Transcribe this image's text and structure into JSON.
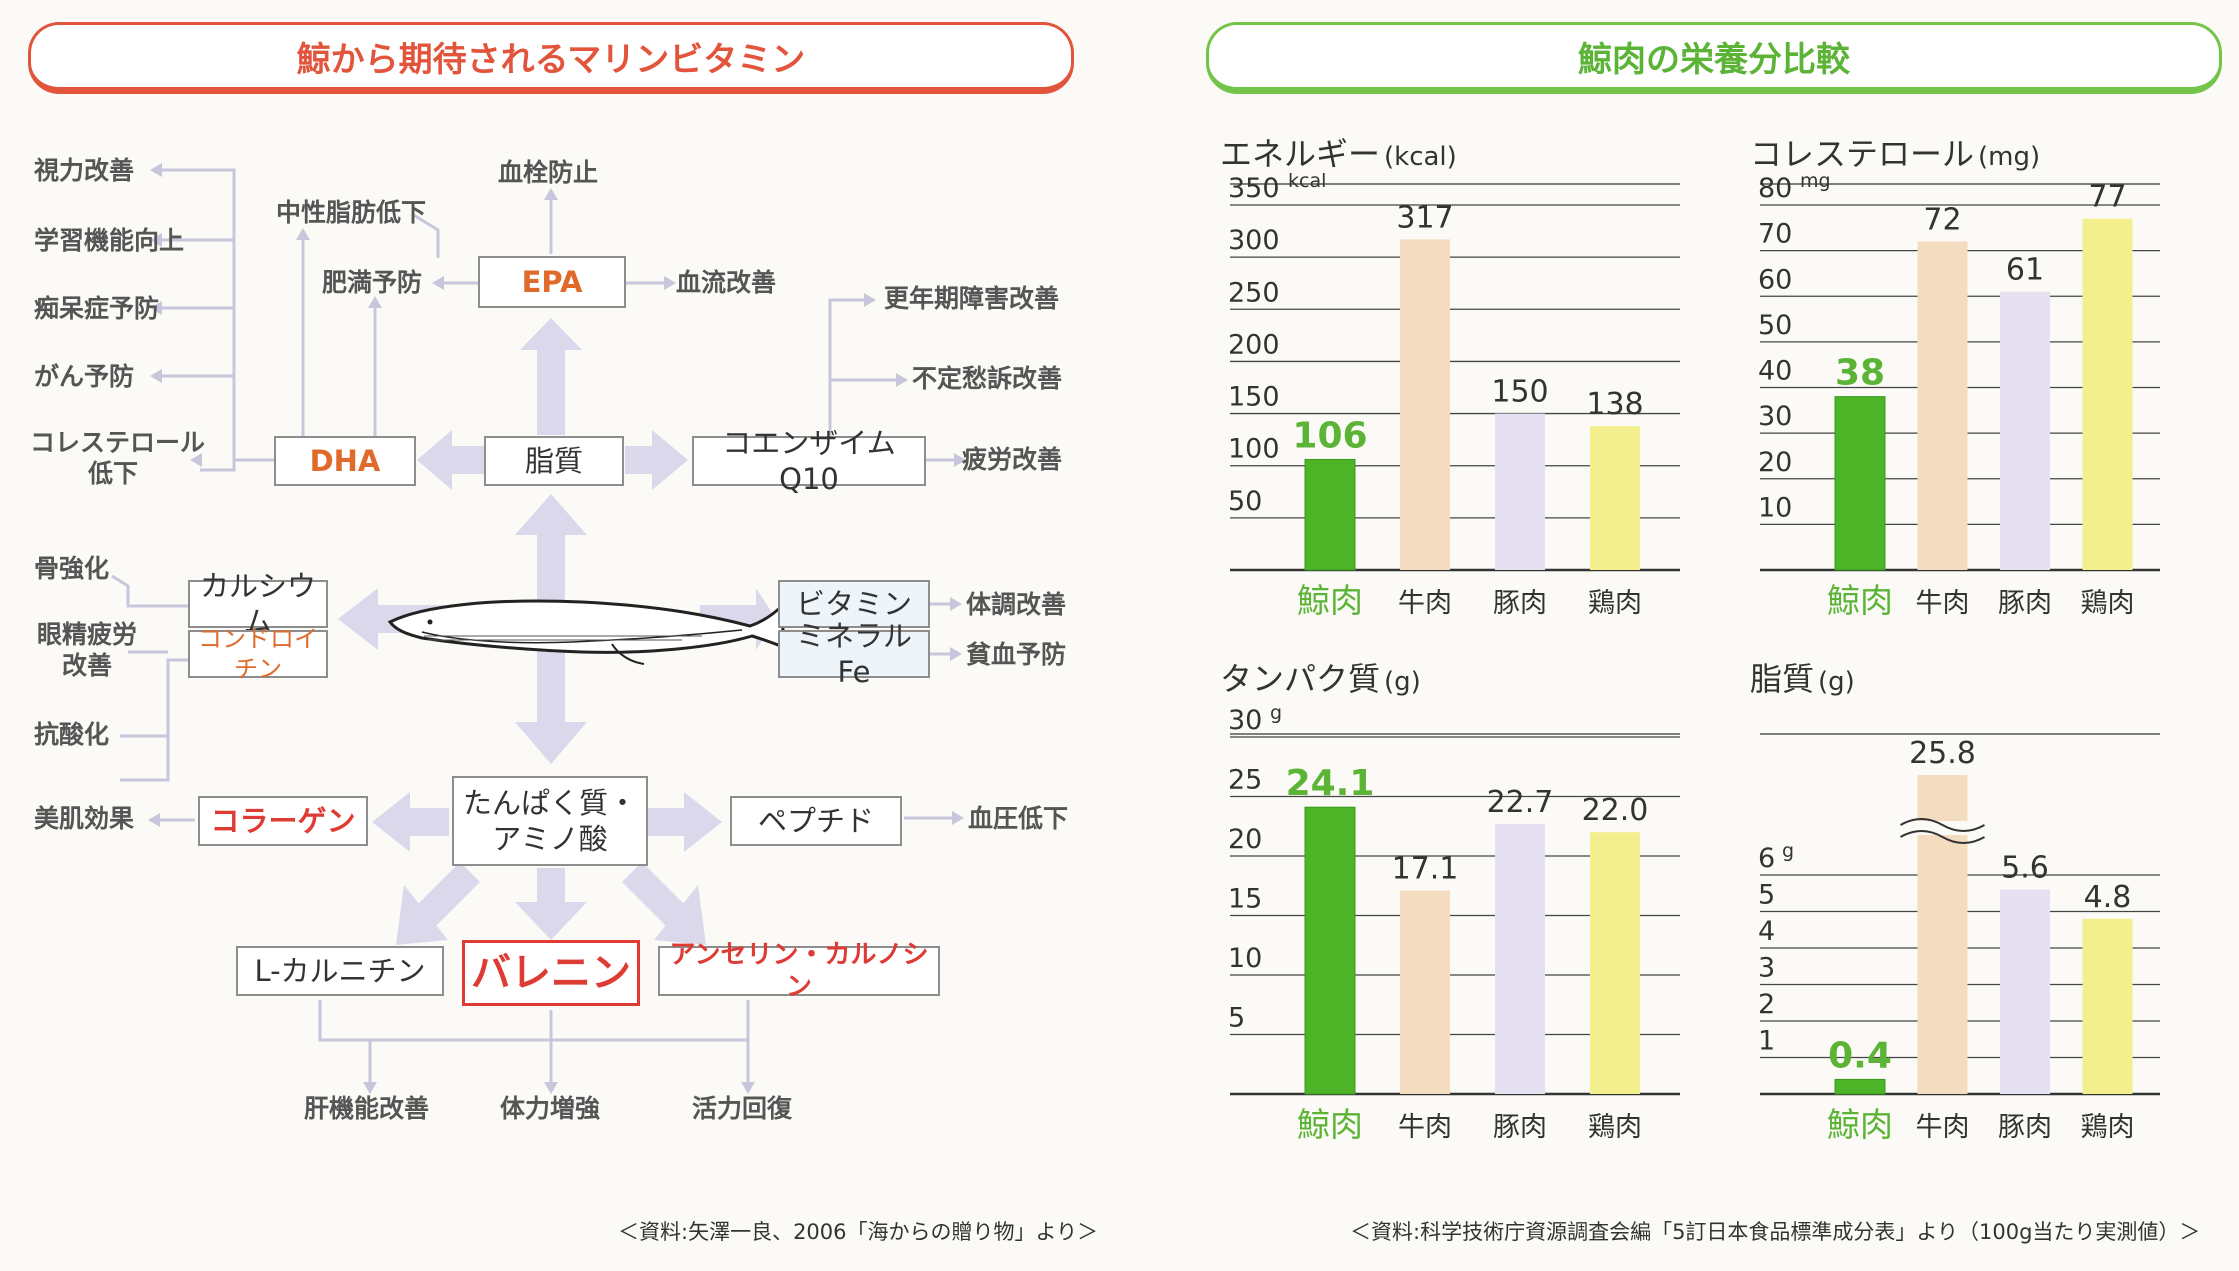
{
  "left": {
    "title": "鯨から期待されるマリンビタミン",
    "boxes": {
      "epa": "EPA",
      "dha": "DHA",
      "lipid": "脂質",
      "coq10": "コエンザイムQ10",
      "calcium": "カルシウム",
      "chondroitin": "コンドロイチン",
      "vitamin": "ビタミン",
      "mineral": "ミネラルFe",
      "protein_line1": "たんぱく質・",
      "protein_line2": "アミノ酸",
      "collagen": "コラーゲン",
      "peptide": "ペプチド",
      "carnitine": "L-カルニチン",
      "balenine": "バレニン",
      "anserine": "アンセリン・カルノシン"
    },
    "effects": {
      "vision": "視力改善",
      "learning": "学習機能向上",
      "dementia": "痴呆症予防",
      "cancer": "がん予防",
      "chol_line1": "コレステロール",
      "chol_line2": "低下",
      "thrombus": "血栓防止",
      "neutral_fat": "中性脂肪低下",
      "obesity": "肥満予防",
      "blood_flow": "血流改善",
      "menopause": "更年期障害改善",
      "malaise": "不定愁訴改善",
      "fatigue": "疲労改善",
      "bone": "骨強化",
      "eye_line1": "眼精疲労",
      "eye_line2": "改善",
      "antiox": "抗酸化",
      "skin": "美肌効果",
      "condition": "体調改善",
      "anemia": "貧血予防",
      "bp": "血圧低下",
      "liver": "肝機能改善",
      "stamina": "体力増強",
      "recovery": "活力回復"
    },
    "source": "＜資料:矢澤一良、2006「海からの贈り物」より＞"
  },
  "right": {
    "title": "鯨肉の栄養分比較",
    "source": "＜資料:科学技術庁資源調査会編「5訂日本食品標準成分表」より（100g当たり実測値）＞"
  },
  "colors": {
    "red": "#e2553c",
    "green": "#5cb437",
    "whale_bar": "#4db427",
    "beef_bar": "#f4dcc0",
    "pork_bar": "#e6e1f1",
    "chicken_bar": "#f3ef8e",
    "arrow": "#dcd8ec"
  },
  "chart_data": [
    {
      "type": "bar",
      "title": "エネルギー",
      "unit_label": "(kcal)",
      "unit_tick": "kcal",
      "categories": [
        "鯨肉",
        "牛肉",
        "豚肉",
        "鶏肉"
      ],
      "values": [
        106,
        317,
        150,
        138
      ],
      "value_labels": [
        "106",
        "317",
        "150",
        "138"
      ],
      "yticks": [
        50,
        100,
        150,
        200,
        250,
        300,
        350
      ],
      "ylim": [
        0,
        350
      ],
      "grid": true
    },
    {
      "type": "bar",
      "title": "コレステロール",
      "unit_label": "(mg)",
      "unit_tick": "mg",
      "categories": [
        "鯨肉",
        "牛肉",
        "豚肉",
        "鶏肉"
      ],
      "values": [
        38,
        72,
        61,
        77
      ],
      "value_labels": [
        "38",
        "72",
        "61",
        "77"
      ],
      "yticks": [
        10,
        20,
        30,
        40,
        50,
        60,
        70,
        80
      ],
      "ylim": [
        0,
        80
      ],
      "grid": true
    },
    {
      "type": "bar",
      "title": "タンパク質",
      "unit_label": "(g)",
      "unit_tick": "g",
      "categories": [
        "鯨肉",
        "牛肉",
        "豚肉",
        "鶏肉"
      ],
      "values": [
        24.1,
        17.1,
        22.7,
        22.0
      ],
      "value_labels": [
        "24.1",
        "17.1",
        "22.7",
        "22.0"
      ],
      "yticks": [
        5,
        10,
        15,
        20,
        25,
        30
      ],
      "ylim": [
        0,
        30
      ],
      "grid": true
    },
    {
      "type": "bar",
      "title": "脂質",
      "unit_label": "(g)",
      "unit_tick": "g",
      "categories": [
        "鯨肉",
        "牛肉",
        "豚肉",
        "鶏肉"
      ],
      "values": [
        0.4,
        25.8,
        5.6,
        4.8
      ],
      "value_labels": [
        "0.4",
        "25.8",
        "5.6",
        "4.8"
      ],
      "yticks": [
        1,
        2,
        3,
        4,
        5,
        6
      ],
      "ylim": [
        0,
        6
      ],
      "axis_break": true,
      "grid": true
    }
  ]
}
